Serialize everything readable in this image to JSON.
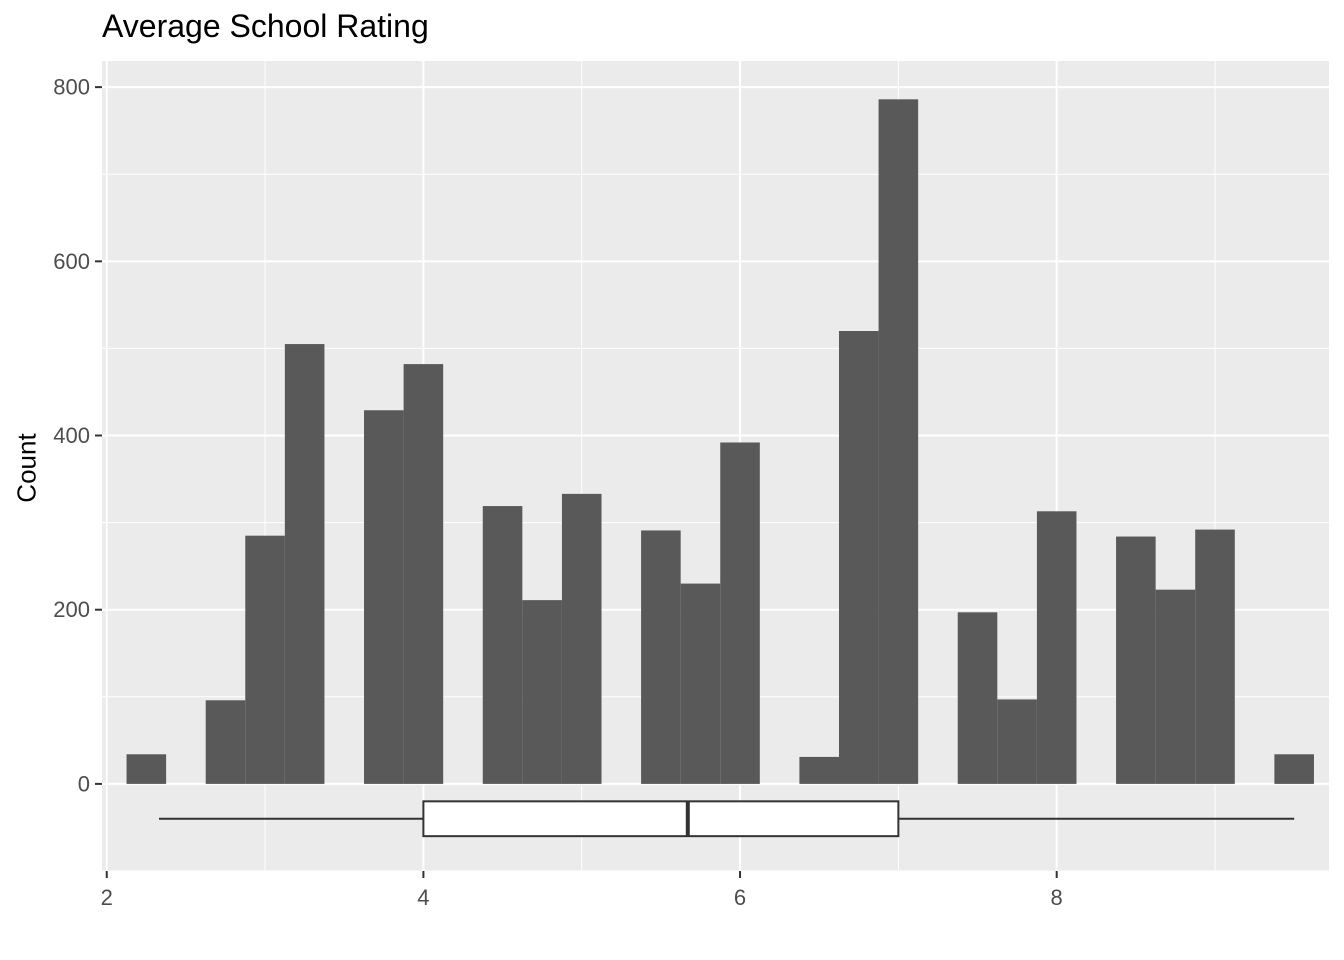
{
  "chart_data": {
    "type": "bar",
    "subtype": "histogram-with-boxplot",
    "title": "Average School Rating",
    "xlabel": "",
    "ylabel": "Count",
    "xlim": [
      1.97,
      9.72
    ],
    "ylim": [
      -100,
      830
    ],
    "x_ticks": [
      "2",
      "4",
      "6",
      "8"
    ],
    "x_tick_values": [
      2,
      4,
      6,
      8
    ],
    "y_ticks": [
      "0",
      "200",
      "400",
      "600",
      "800"
    ],
    "y_tick_values": [
      0,
      200,
      400,
      600,
      800
    ],
    "grid": true,
    "panel_background": "#EBEBEB",
    "bar_color": "#595959",
    "bin_width": 0.25,
    "bins": [
      {
        "x": 2.25,
        "count": 34
      },
      {
        "x": 2.75,
        "count": 96
      },
      {
        "x": 3.0,
        "count": 285
      },
      {
        "x": 3.25,
        "count": 505
      },
      {
        "x": 3.75,
        "count": 429
      },
      {
        "x": 4.0,
        "count": 482
      },
      {
        "x": 4.5,
        "count": 319
      },
      {
        "x": 4.75,
        "count": 211
      },
      {
        "x": 5.0,
        "count": 333
      },
      {
        "x": 5.5,
        "count": 291
      },
      {
        "x": 5.75,
        "count": 230
      },
      {
        "x": 6.0,
        "count": 392
      },
      {
        "x": 6.5,
        "count": 31
      },
      {
        "x": 6.75,
        "count": 520
      },
      {
        "x": 7.0,
        "count": 786
      },
      {
        "x": 7.5,
        "count": 197
      },
      {
        "x": 7.75,
        "count": 97
      },
      {
        "x": 8.0,
        "count": 313
      },
      {
        "x": 8.5,
        "count": 284
      },
      {
        "x": 8.75,
        "count": 223
      },
      {
        "x": 9.0,
        "count": 292
      },
      {
        "x": 9.5,
        "count": 34
      }
    ],
    "boxplot": {
      "y_center": -40,
      "y_half_height": 20,
      "min": 2.33,
      "q1": 4.0,
      "median": 5.67,
      "q3": 7.0,
      "max": 9.5
    }
  }
}
